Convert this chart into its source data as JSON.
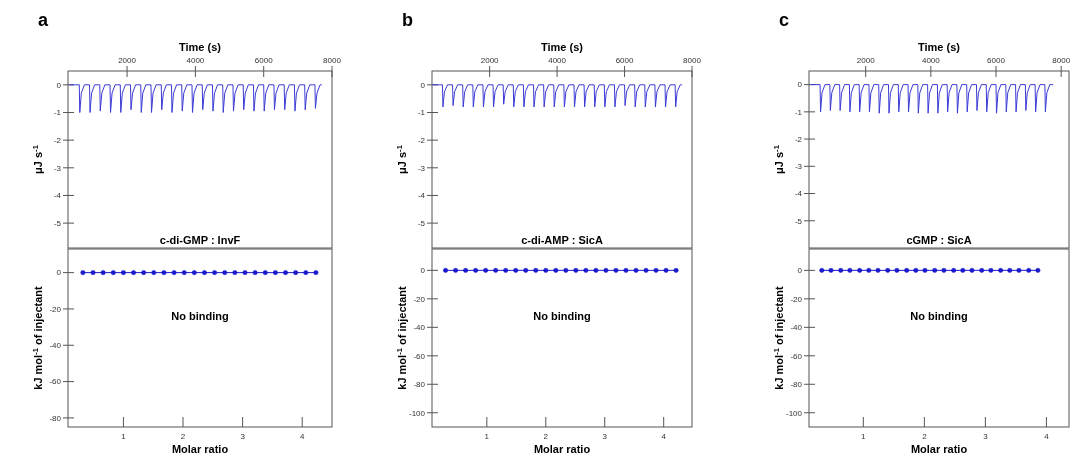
{
  "chart_data": [
    {
      "type": "line",
      "title": "a",
      "xlabel": "Time (s)",
      "ylabel": "μJ s$^{-1}$",
      "xlim": [
        270,
        8000
      ],
      "xticks": [
        2000,
        4000,
        6000,
        8000
      ],
      "ylim": [
        -5.9,
        0.5
      ],
      "yticks": [
        0,
        -1,
        -2,
        -3,
        -4,
        -5
      ],
      "annotations": [
        "c-di-GMP : InvF"
      ],
      "series": [
        {
          "color": "#3b3bd6",
          "x": [
            300,
            600,
            615,
            660,
            750,
            900,
            915,
            960,
            1050,
            1200,
            1215,
            1260,
            1350,
            1500,
            1515,
            1560,
            1650,
            1800,
            1815,
            1860,
            1950,
            2100,
            2115,
            2160,
            2250,
            2400,
            2415,
            2460,
            2550,
            2700,
            2715,
            2760,
            2850,
            3000,
            3015,
            3060,
            3150,
            3300,
            3315,
            3360,
            3450,
            3600,
            3615,
            3660,
            3750,
            3900,
            3915,
            3960,
            4050,
            4200,
            4215,
            4260,
            4350,
            4500,
            4515,
            4560,
            4650,
            4800,
            4815,
            4860,
            4950,
            5100,
            5115,
            5160,
            5250,
            5400,
            5415,
            5460,
            5550,
            5700,
            5715,
            5760,
            5850,
            6000,
            6015,
            6060,
            6150,
            6300,
            6315,
            6360,
            6450,
            6600,
            6615,
            6660,
            6750,
            6900,
            6915,
            6960,
            7050,
            7200,
            7215,
            7260,
            7350,
            7500,
            7515,
            7560,
            7650,
            7700
          ],
          "values": [
            0,
            0,
            -1.0,
            -0.3,
            0,
            0,
            -1.0,
            -0.3,
            0,
            0,
            -0.95,
            -0.3,
            0,
            0,
            -1.0,
            -0.3,
            0,
            0,
            -1.0,
            -0.3,
            0,
            0,
            -0.9,
            -0.3,
            0,
            0,
            -1.0,
            -0.3,
            0,
            0,
            -1.0,
            -0.3,
            0,
            0,
            -0.9,
            -0.3,
            0,
            0,
            -1.0,
            -0.3,
            0,
            0,
            -0.95,
            -0.3,
            0,
            0,
            -1.0,
            -0.3,
            0,
            0,
            -0.9,
            -0.3,
            0,
            0,
            -0.95,
            -0.3,
            0,
            0,
            -1.0,
            -0.3,
            0,
            0,
            -0.95,
            -0.3,
            0,
            0,
            -0.9,
            -0.3,
            0,
            0,
            -0.95,
            -0.3,
            0,
            0,
            -0.95,
            -0.3,
            0,
            0,
            -0.9,
            -0.3,
            0,
            0,
            -0.9,
            -0.3,
            0,
            0,
            -0.95,
            -0.3,
            0,
            0,
            -0.9,
            -0.3,
            0,
            0,
            -0.85,
            -0.3,
            0,
            0
          ]
        }
      ]
    },
    {
      "type": "line",
      "xlabel": "Molar ratio",
      "ylabel": "kJ mol$^{-1}$ of injectant",
      "xlim": [
        0.07,
        4.5
      ],
      "xticks": [
        1,
        2,
        3,
        4
      ],
      "ylim": [
        -85,
        13
      ],
      "yticks": [
        0,
        -20,
        -40,
        -60,
        -80
      ],
      "annotations": [
        "No binding"
      ],
      "marker": "circle",
      "series": [
        {
          "color": "#1a1acc",
          "x": [
            0.32,
            0.49,
            0.66,
            0.83,
            1.0,
            1.17,
            1.34,
            1.51,
            1.68,
            1.85,
            2.02,
            2.19,
            2.36,
            2.53,
            2.7,
            2.87,
            3.04,
            3.21,
            3.38,
            3.55,
            3.72,
            3.89,
            4.06,
            4.23
          ],
          "values": [
            0,
            0,
            0,
            0,
            0,
            0,
            0,
            0,
            0,
            0,
            0,
            0,
            0,
            0,
            0,
            0,
            0,
            0,
            0,
            0,
            0,
            0,
            0,
            0
          ]
        }
      ]
    },
    {
      "type": "line",
      "title": "b",
      "xlabel": "Time (s)",
      "ylabel": "μJ s$^{-1}$",
      "xlim": [
        290,
        8000
      ],
      "xticks": [
        2000,
        4000,
        6000,
        8000
      ],
      "ylim": [
        -5.9,
        0.5
      ],
      "yticks": [
        0,
        -1,
        -2,
        -3,
        -4,
        -5
      ],
      "annotations": [
        "c-di-AMP : SicA"
      ],
      "series": [
        {
          "color": "#3b3bd6",
          "x": [
            300,
            600,
            615,
            660,
            750,
            900,
            915,
            960,
            1050,
            1200,
            1215,
            1260,
            1350,
            1500,
            1515,
            1560,
            1650,
            1800,
            1815,
            1860,
            1950,
            2100,
            2115,
            2160,
            2250,
            2400,
            2415,
            2460,
            2550,
            2700,
            2715,
            2760,
            2850,
            3000,
            3015,
            3060,
            3150,
            3300,
            3315,
            3360,
            3450,
            3600,
            3615,
            3660,
            3750,
            3900,
            3915,
            3960,
            4050,
            4200,
            4215,
            4260,
            4350,
            4500,
            4515,
            4560,
            4650,
            4800,
            4815,
            4860,
            4950,
            5100,
            5115,
            5160,
            5250,
            5400,
            5415,
            5460,
            5550,
            5700,
            5715,
            5760,
            5850,
            6000,
            6015,
            6060,
            6150,
            6300,
            6315,
            6360,
            6450,
            6600,
            6615,
            6660,
            6750,
            6900,
            6915,
            6960,
            7050,
            7200,
            7215,
            7260,
            7350,
            7500,
            7515,
            7560,
            7650,
            7700
          ],
          "values": [
            0,
            0,
            -0.8,
            -0.25,
            0,
            0,
            -0.75,
            -0.25,
            0,
            0,
            -0.8,
            -0.25,
            0,
            0,
            -0.8,
            -0.25,
            0,
            0,
            -0.8,
            -0.25,
            0,
            0,
            -0.8,
            -0.25,
            0,
            0,
            -0.7,
            -0.25,
            0,
            0,
            -0.8,
            -0.25,
            0,
            0,
            -0.8,
            -0.25,
            0,
            0,
            -0.8,
            -0.25,
            0,
            0,
            -0.8,
            -0.25,
            0,
            0,
            -0.8,
            -0.25,
            0,
            0,
            -0.8,
            -0.25,
            0,
            0,
            -0.8,
            -0.25,
            0,
            0,
            -0.8,
            -0.25,
            0,
            0,
            -0.8,
            -0.25,
            0,
            0,
            -0.8,
            -0.25,
            0,
            0,
            -0.8,
            -0.25,
            0,
            0,
            -0.75,
            -0.25,
            0,
            0,
            -0.8,
            -0.25,
            0,
            0,
            -0.8,
            -0.25,
            0,
            0,
            -0.8,
            -0.25,
            0,
            0,
            -0.8,
            -0.25,
            0,
            0,
            -0.8,
            -0.25,
            0,
            0
          ]
        }
      ]
    },
    {
      "type": "line",
      "xlabel": "Molar ratio",
      "ylabel": "kJ mol$^{-1}$ of injectant",
      "xlim": [
        0.07,
        4.48
      ],
      "xticks": [
        1,
        2,
        3,
        4
      ],
      "ylim": [
        -110,
        15
      ],
      "yticks": [
        0,
        -20,
        -40,
        -60,
        -80,
        -100
      ],
      "annotations": [
        "No binding"
      ],
      "marker": "circle",
      "series": [
        {
          "color": "#1a1acc",
          "x": [
            0.3,
            0.47,
            0.64,
            0.81,
            0.98,
            1.15,
            1.32,
            1.49,
            1.66,
            1.83,
            2.0,
            2.17,
            2.34,
            2.51,
            2.68,
            2.85,
            3.02,
            3.19,
            3.36,
            3.53,
            3.7,
            3.87,
            4.04,
            4.21
          ],
          "values": [
            0,
            0,
            0,
            0,
            0,
            0,
            0,
            0,
            0,
            0,
            0,
            0,
            0,
            0,
            0,
            0,
            0,
            0,
            0,
            0,
            0,
            0,
            0,
            0
          ]
        }
      ]
    },
    {
      "type": "line",
      "title": "c",
      "xlabel": "Time (s)",
      "ylabel": "μJ s$^{-1}$",
      "xlim": [
        260,
        8240
      ],
      "xticks": [
        2000,
        4000,
        6000,
        8000
      ],
      "ylim": [
        -6,
        0.5
      ],
      "yticks": [
        0,
        -1,
        -2,
        -3,
        -4,
        -5
      ],
      "annotations": [
        "cGMP : SicA"
      ],
      "series": [
        {
          "color": "#3b3bd6",
          "x": [
            300,
            600,
            615,
            660,
            750,
            900,
            915,
            960,
            1050,
            1200,
            1215,
            1260,
            1350,
            1500,
            1515,
            1560,
            1650,
            1800,
            1815,
            1860,
            1950,
            2100,
            2115,
            2160,
            2250,
            2400,
            2415,
            2460,
            2550,
            2700,
            2715,
            2760,
            2850,
            3000,
            3015,
            3060,
            3150,
            3300,
            3315,
            3360,
            3450,
            3600,
            3615,
            3660,
            3750,
            3900,
            3915,
            3960,
            4050,
            4200,
            4215,
            4260,
            4350,
            4500,
            4515,
            4560,
            4650,
            4800,
            4815,
            4860,
            4950,
            5100,
            5115,
            5160,
            5250,
            5400,
            5415,
            5460,
            5550,
            5700,
            5715,
            5760,
            5850,
            6000,
            6015,
            6060,
            6150,
            6300,
            6315,
            6360,
            6450,
            6600,
            6615,
            6660,
            6750,
            6900,
            6915,
            6960,
            7050,
            7200,
            7215,
            7260,
            7350,
            7500,
            7515,
            7560,
            7650,
            7750
          ],
          "values": [
            0,
            0,
            -1.0,
            -0.3,
            0,
            0,
            -0.95,
            -0.3,
            0,
            0,
            -0.95,
            -0.3,
            0,
            0,
            -1.0,
            -0.3,
            0,
            0,
            -1.0,
            -0.3,
            0,
            0,
            -1.0,
            -0.3,
            0,
            0,
            -1.05,
            -0.3,
            0,
            0,
            -1.05,
            -0.3,
            0,
            0,
            -1.0,
            -0.3,
            0,
            0,
            -1.0,
            -0.3,
            0,
            0,
            -1.05,
            -0.3,
            0,
            0,
            -1.05,
            -0.3,
            0,
            0,
            -1.05,
            -0.3,
            0,
            0,
            -1.0,
            -0.3,
            0,
            0,
            -1.05,
            -0.3,
            0,
            0,
            -1.0,
            -0.3,
            0,
            0,
            -0.95,
            -0.3,
            0,
            0,
            -1.0,
            -0.3,
            0,
            0,
            -1.05,
            -0.3,
            0,
            0,
            -1.0,
            -0.3,
            0,
            0,
            -1.0,
            -0.3,
            0,
            0,
            -0.95,
            -0.3,
            0,
            0,
            -1.0,
            -0.3,
            0,
            0,
            -1.0,
            -0.3,
            0,
            0
          ]
        }
      ]
    },
    {
      "type": "line",
      "xlabel": "Molar ratio",
      "ylabel": "kJ mol$^{-1}$ of injectant",
      "xlim": [
        0.11,
        4.37
      ],
      "xticks": [
        1,
        2,
        3,
        4
      ],
      "ylim": [
        -110,
        15
      ],
      "yticks": [
        0,
        -20,
        -40,
        -60,
        -80,
        -100
      ],
      "annotations": [
        "No binding"
      ],
      "marker": "circle",
      "series": [
        {
          "color": "#1a1acc",
          "x": [
            0.32,
            0.47,
            0.63,
            0.78,
            0.94,
            1.09,
            1.24,
            1.4,
            1.55,
            1.71,
            1.86,
            2.01,
            2.17,
            2.32,
            2.48,
            2.63,
            2.78,
            2.94,
            3.09,
            3.25,
            3.4,
            3.55,
            3.71,
            3.86
          ],
          "values": [
            0,
            0,
            0,
            0,
            0,
            0,
            0,
            0,
            0,
            0,
            0,
            0,
            0,
            0,
            0,
            0,
            0,
            0,
            0,
            0,
            0,
            0,
            0,
            0
          ]
        }
      ]
    }
  ]
}
